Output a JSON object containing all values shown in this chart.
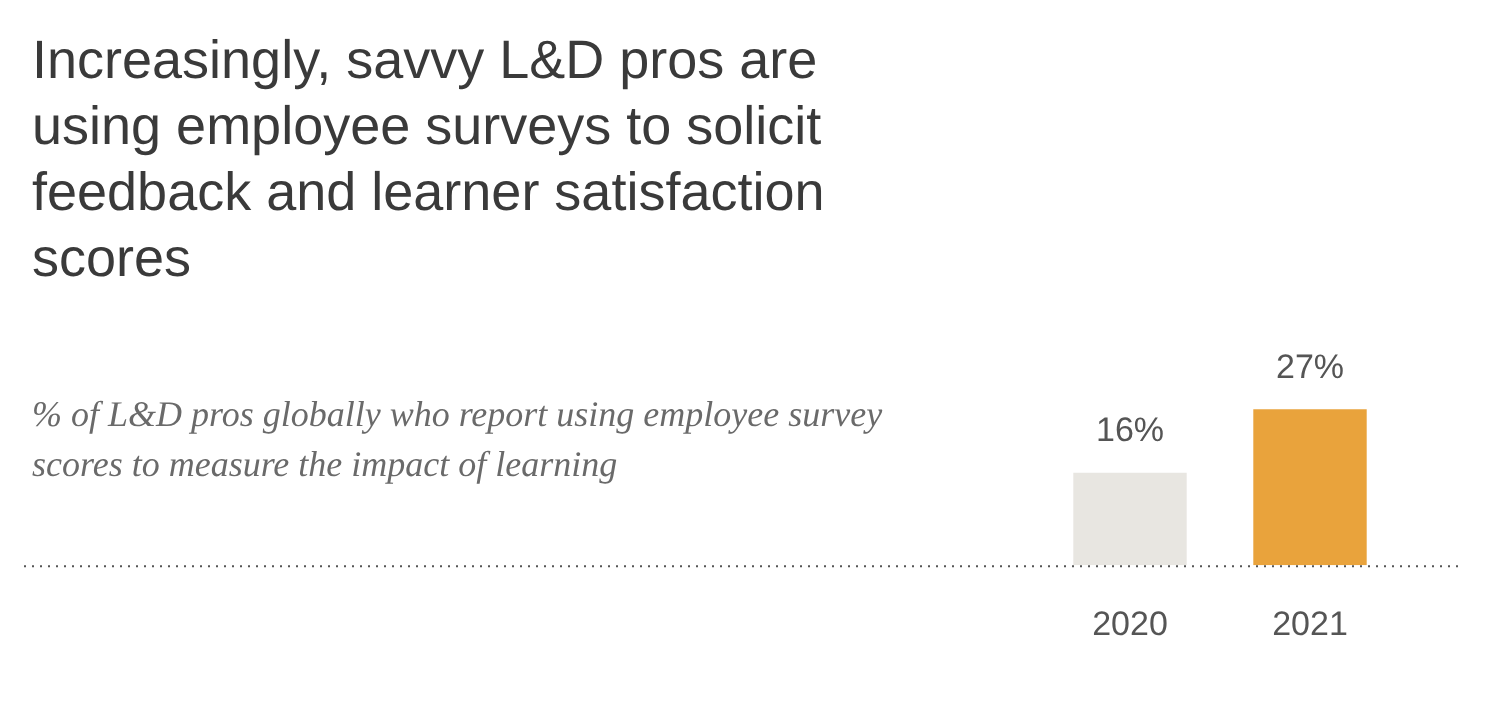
{
  "chart_data": {
    "type": "bar",
    "title": "Increasingly, savvy L&D pros are using employee surveys to solicit feedback and learner satisfaction scores",
    "subtitle": "% of L&D pros globally who report using employee survey scores to measure the impact of learning",
    "categories": [
      "2020",
      "2021"
    ],
    "values": [
      16,
      27
    ],
    "colors": [
      "#e8e6e1",
      "#e9a33c"
    ],
    "value_labels": [
      "16%",
      "27%"
    ],
    "legend": false,
    "grid": false
  }
}
